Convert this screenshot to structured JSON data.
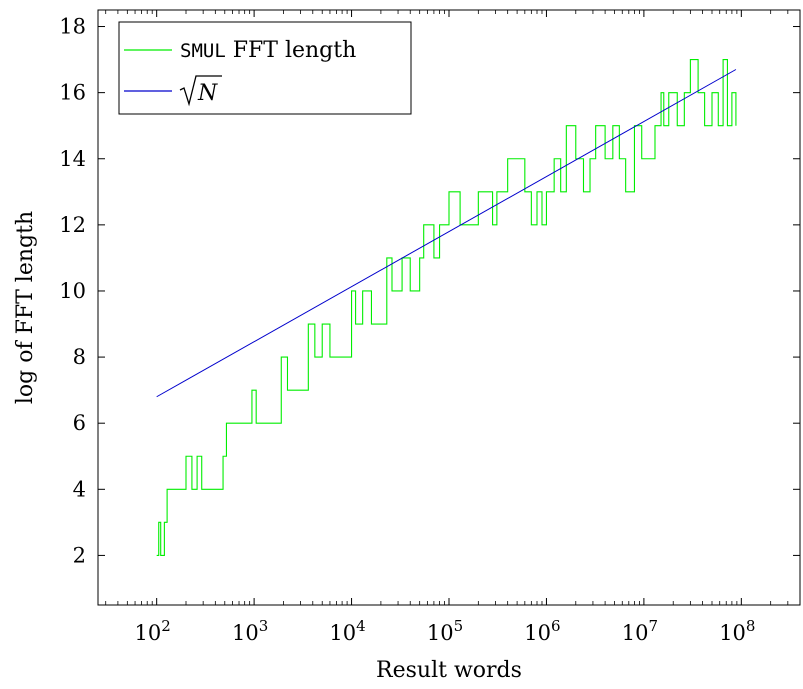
{
  "chart_data": {
    "type": "line",
    "title": "",
    "xlabel": "Result words",
    "ylabel": "log of FFT length",
    "xscale": "log",
    "xlim": [
      25,
      400000000
    ],
    "ylim": [
      0.5,
      18.5
    ],
    "x_ticks": [
      100,
      1000,
      10000,
      100000,
      1000000,
      10000000,
      100000000
    ],
    "x_tick_labels": [
      {
        "base": "10",
        "exp": "2"
      },
      {
        "base": "10",
        "exp": "3"
      },
      {
        "base": "10",
        "exp": "4"
      },
      {
        "base": "10",
        "exp": "5"
      },
      {
        "base": "10",
        "exp": "6"
      },
      {
        "base": "10",
        "exp": "7"
      },
      {
        "base": "10",
        "exp": "8"
      }
    ],
    "y_ticks": [
      2,
      4,
      6,
      8,
      10,
      12,
      14,
      16,
      18
    ],
    "y_tick_labels": [
      "2",
      "4",
      "6",
      "8",
      "10",
      "12",
      "14",
      "16",
      "18"
    ],
    "grid": false,
    "legend": {
      "placement": "top-left",
      "entries": [
        {
          "code": "SMUL",
          "text": "FFT length",
          "color": "#00ee00"
        },
        {
          "symbol": "sqrt",
          "text": "N",
          "color": "#0000cc"
        }
      ]
    },
    "series": [
      {
        "name": "SMUL FFT length",
        "color": "#00ee00",
        "step": true,
        "x": [
          100,
          105,
          110,
          120,
          128,
          200,
          230,
          260,
          290,
          480,
          520,
          950,
          1050,
          1900,
          2200,
          3600,
          4200,
          5000,
          6000,
          10000,
          11000,
          13000,
          16000,
          23000,
          26000,
          33000,
          40000,
          50000,
          55000,
          70000,
          80000,
          100000,
          130000,
          200000,
          280000,
          310000,
          400000,
          600000,
          700000,
          800000,
          900000,
          1000000,
          1200000,
          1400000,
          1600000,
          2000000,
          2400000,
          2800000,
          3200000,
          4000000,
          4800000,
          5600000,
          6500000,
          8000000,
          9500000,
          11000000,
          13000000,
          15000000,
          16000000,
          18000000,
          22000000,
          26000000,
          30000000,
          36000000,
          42000000,
          50000000,
          58000000,
          65000000,
          72000000,
          80000000,
          88000000
        ],
        "y": [
          2,
          3,
          2,
          3,
          4,
          5,
          4,
          5,
          4,
          5,
          6,
          7,
          6,
          8,
          7,
          9,
          8,
          9,
          8,
          10,
          9,
          10,
          9,
          11,
          10,
          11,
          10,
          11,
          12,
          11,
          12,
          13,
          12,
          13,
          12,
          13,
          14,
          13,
          12,
          13,
          12,
          13,
          14,
          13,
          15,
          14,
          13,
          14,
          15,
          14,
          15,
          14,
          13,
          15,
          14,
          14,
          15,
          16,
          15,
          16,
          15,
          16,
          17,
          16,
          15,
          16,
          15,
          17,
          15,
          16,
          15
        ]
      },
      {
        "name": "√N",
        "color": "#0000cc",
        "step": false,
        "x": [
          100,
          88000000
        ],
        "y": [
          6.8,
          16.7
        ]
      }
    ]
  }
}
